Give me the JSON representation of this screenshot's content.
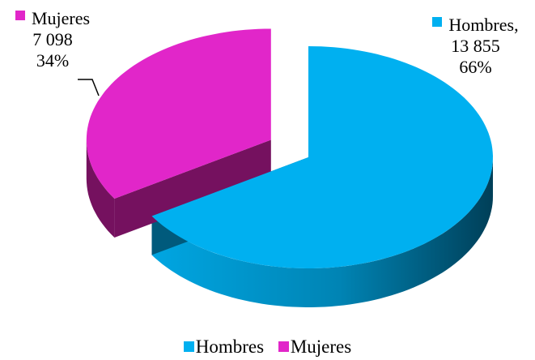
{
  "chart_data": {
    "type": "pie",
    "style": "3d-exploded",
    "categories": [
      "Hombres",
      "Mujeres"
    ],
    "values": [
      13855,
      7098
    ],
    "percentages": [
      66,
      34
    ],
    "colors": {
      "Hombres": {
        "top": "#00b0f0",
        "side": "#005a7c"
      },
      "Mujeres": {
        "top": "#e126c9",
        "side": "#75115f"
      }
    },
    "data_labels": {
      "Hombres": {
        "name": "Hombres,",
        "value": "13 855",
        "percent": "66%"
      },
      "Mujeres": {
        "name": "Mujeres",
        "value": "7 098",
        "percent": "34%"
      }
    },
    "legend": {
      "position": "bottom",
      "entries": [
        "Hombres",
        "Mujeres"
      ]
    }
  }
}
